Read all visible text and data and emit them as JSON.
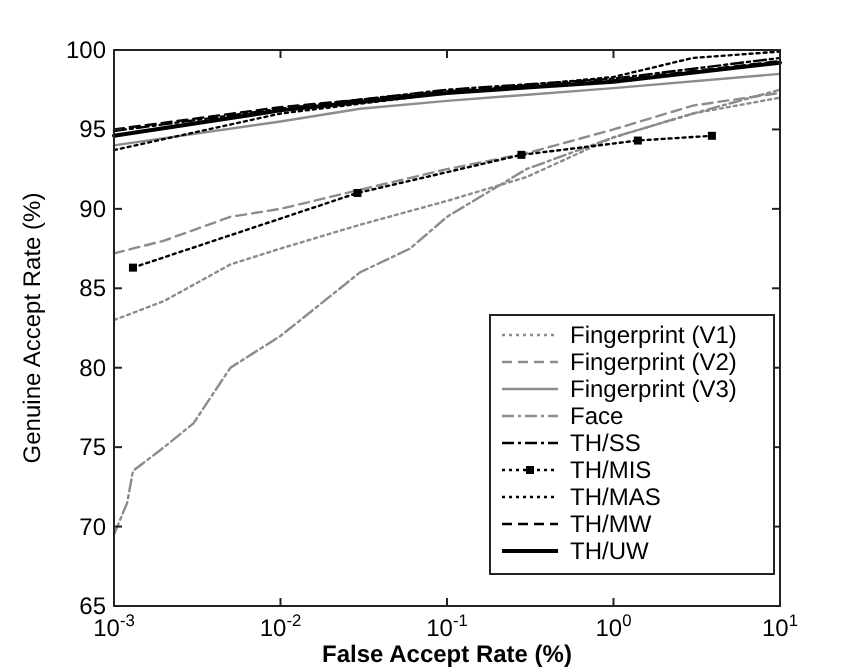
{
  "chart_data": {
    "type": "line",
    "xlabel": "False Accept Rate (%)",
    "ylabel": "Genuine Accept Rate (%)",
    "log": "x",
    "xlim": [
      0.001,
      10
    ],
    "ylim": [
      65,
      100
    ],
    "xticks": [
      {
        "value": 0.001,
        "label": "10$^{-3}$"
      },
      {
        "value": 0.01,
        "label": "10$^{-2}$"
      },
      {
        "value": 0.1,
        "label": "10$^{-1}$"
      },
      {
        "value": 1,
        "label": "10$^{0}$"
      },
      {
        "value": 10,
        "label": "10$^{1}$"
      }
    ],
    "yticks": [
      65,
      70,
      75,
      80,
      85,
      90,
      95,
      100
    ],
    "grid": false,
    "legend": "bottom right",
    "marker": "none",
    "series": [
      {
        "name": "Fingerprint (V1)",
        "color": "#8c8c8c",
        "line_style": "dotted",
        "x": [
          0.001,
          0.002,
          0.005,
          0.01,
          0.03,
          0.1,
          0.3,
          1,
          3,
          10
        ],
        "values": [
          83,
          84.2,
          86.5,
          87.5,
          89,
          90.5,
          92,
          94.5,
          96,
          97
        ]
      },
      {
        "name": "Fingerprint (V2)",
        "color": "#8c8c8c",
        "line_style": "dashed",
        "x": [
          0.001,
          0.002,
          0.005,
          0.01,
          0.03,
          0.1,
          0.3,
          1,
          3,
          10
        ],
        "values": [
          87.2,
          88,
          89.5,
          90,
          91.2,
          92.5,
          93.5,
          95,
          96.5,
          97.3
        ]
      },
      {
        "name": "Fingerprint (V3)",
        "color": "#8c8c8c",
        "line_style": "solid",
        "x": [
          0.001,
          0.01,
          0.03,
          0.1,
          1,
          10
        ],
        "values": [
          94,
          95.5,
          96.3,
          96.8,
          97.6,
          98.5
        ]
      },
      {
        "name": "Face",
        "color": "#8c8c8c",
        "line_style": "dashdot",
        "x": [
          0.001,
          0.0012,
          0.0013,
          0.002,
          0.003,
          0.005,
          0.01,
          0.03,
          0.06,
          0.1,
          0.3,
          1,
          3,
          10
        ],
        "values": [
          69.5,
          71.5,
          73.5,
          75,
          76.5,
          80,
          82,
          86,
          87.5,
          89.5,
          92.5,
          94.5,
          96,
          97.5
        ]
      },
      {
        "name": "TH/SS",
        "color": "#000000",
        "line_style": "dashdot",
        "x": [
          0.001,
          0.01,
          0.1,
          1,
          10
        ],
        "values": [
          94.9,
          96.3,
          97.5,
          98.2,
          99.5
        ]
      },
      {
        "name": "TH/MIS",
        "color": "#000000",
        "line_style": "dotted",
        "marker": "square",
        "x": [
          0.0013,
          0.029,
          0.28,
          1.4,
          3.9
        ],
        "values": [
          86.3,
          91,
          93.4,
          94.3,
          94.6
        ]
      },
      {
        "name": "TH/MAS",
        "color": "#000000",
        "line_style": "dotted",
        "x": [
          0.001,
          0.01,
          0.1,
          1,
          3,
          10
        ],
        "values": [
          93.7,
          96,
          97.3,
          98.3,
          99.5,
          99.9
        ]
      },
      {
        "name": "TH/MW",
        "color": "#000000",
        "line_style": "dashed",
        "x": [
          0.001,
          0.01,
          0.1,
          1,
          10
        ],
        "values": [
          95,
          96.4,
          97.4,
          98.1,
          99.3
        ]
      },
      {
        "name": "TH/UW",
        "color": "#000000",
        "line_style": "solid",
        "x": [
          0.001,
          0.01,
          0.1,
          1,
          10
        ],
        "values": [
          94.6,
          96.2,
          97.3,
          98,
          99.2
        ]
      }
    ]
  }
}
